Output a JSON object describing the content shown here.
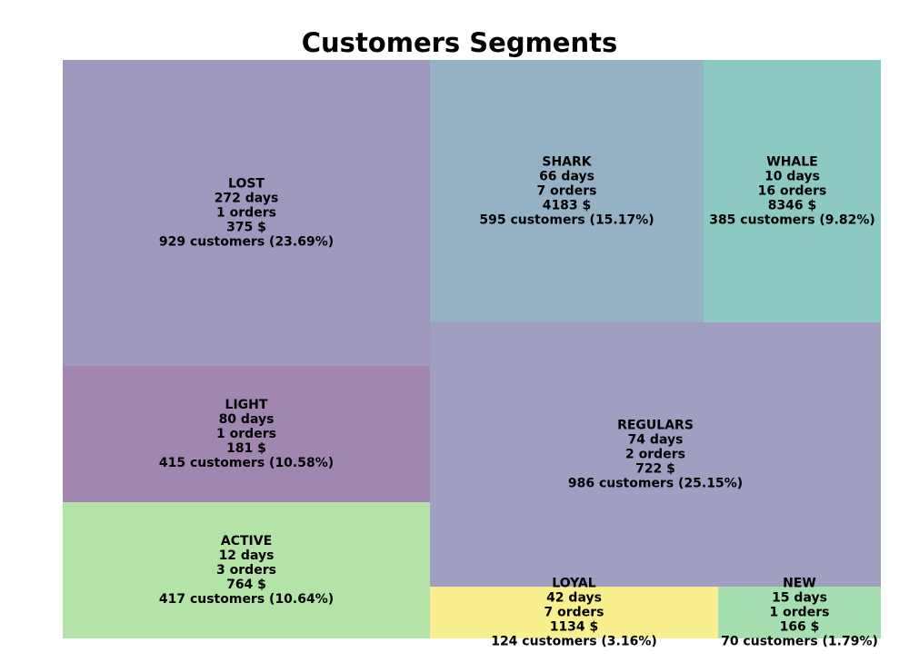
{
  "chart_data": {
    "type": "treemap",
    "title": "Customers Segments",
    "segments": [
      {
        "name": "LOST",
        "days": "272 days",
        "orders": "1 orders",
        "amount": "375 $",
        "customers": "929 customers (23.69%)",
        "color": "#a097bd"
      },
      {
        "name": "LIGHT",
        "days": "80 days",
        "orders": "1 orders",
        "amount": "181 $",
        "customers": "415 customers (10.58%)",
        "color": "#a187b0"
      },
      {
        "name": "ACTIVE",
        "days": "12 days",
        "orders": "3 orders",
        "amount": "764 $",
        "customers": "417 customers (10.64%)",
        "color": "#b4e3a8"
      },
      {
        "name": "SHARK",
        "days": "66 days",
        "orders": "7 orders",
        "amount": "4183 $",
        "customers": "595 customers (15.17%)",
        "color": "#95b2c5"
      },
      {
        "name": "WHALE",
        "days": "10 days",
        "orders": "16 orders",
        "amount": "8346 $",
        "customers": "385 customers (9.82%)",
        "color": "#8bc9c2"
      },
      {
        "name": "REGULARS",
        "days": "74 days",
        "orders": "2 orders",
        "amount": "722 $",
        "customers": "986 customers (25.15%)",
        "color": "#a09fc2"
      },
      {
        "name": "LOYAL",
        "days": "42 days",
        "orders": "7 orders",
        "amount": "1134 $",
        "customers": "124 customers (3.16%)",
        "color": "#f9ef8e"
      },
      {
        "name": "NEW",
        "days": "15 days",
        "orders": "1 orders",
        "amount": "166 $",
        "customers": "70 customers (1.79%)",
        "color": "#a5dfb0"
      }
    ]
  }
}
